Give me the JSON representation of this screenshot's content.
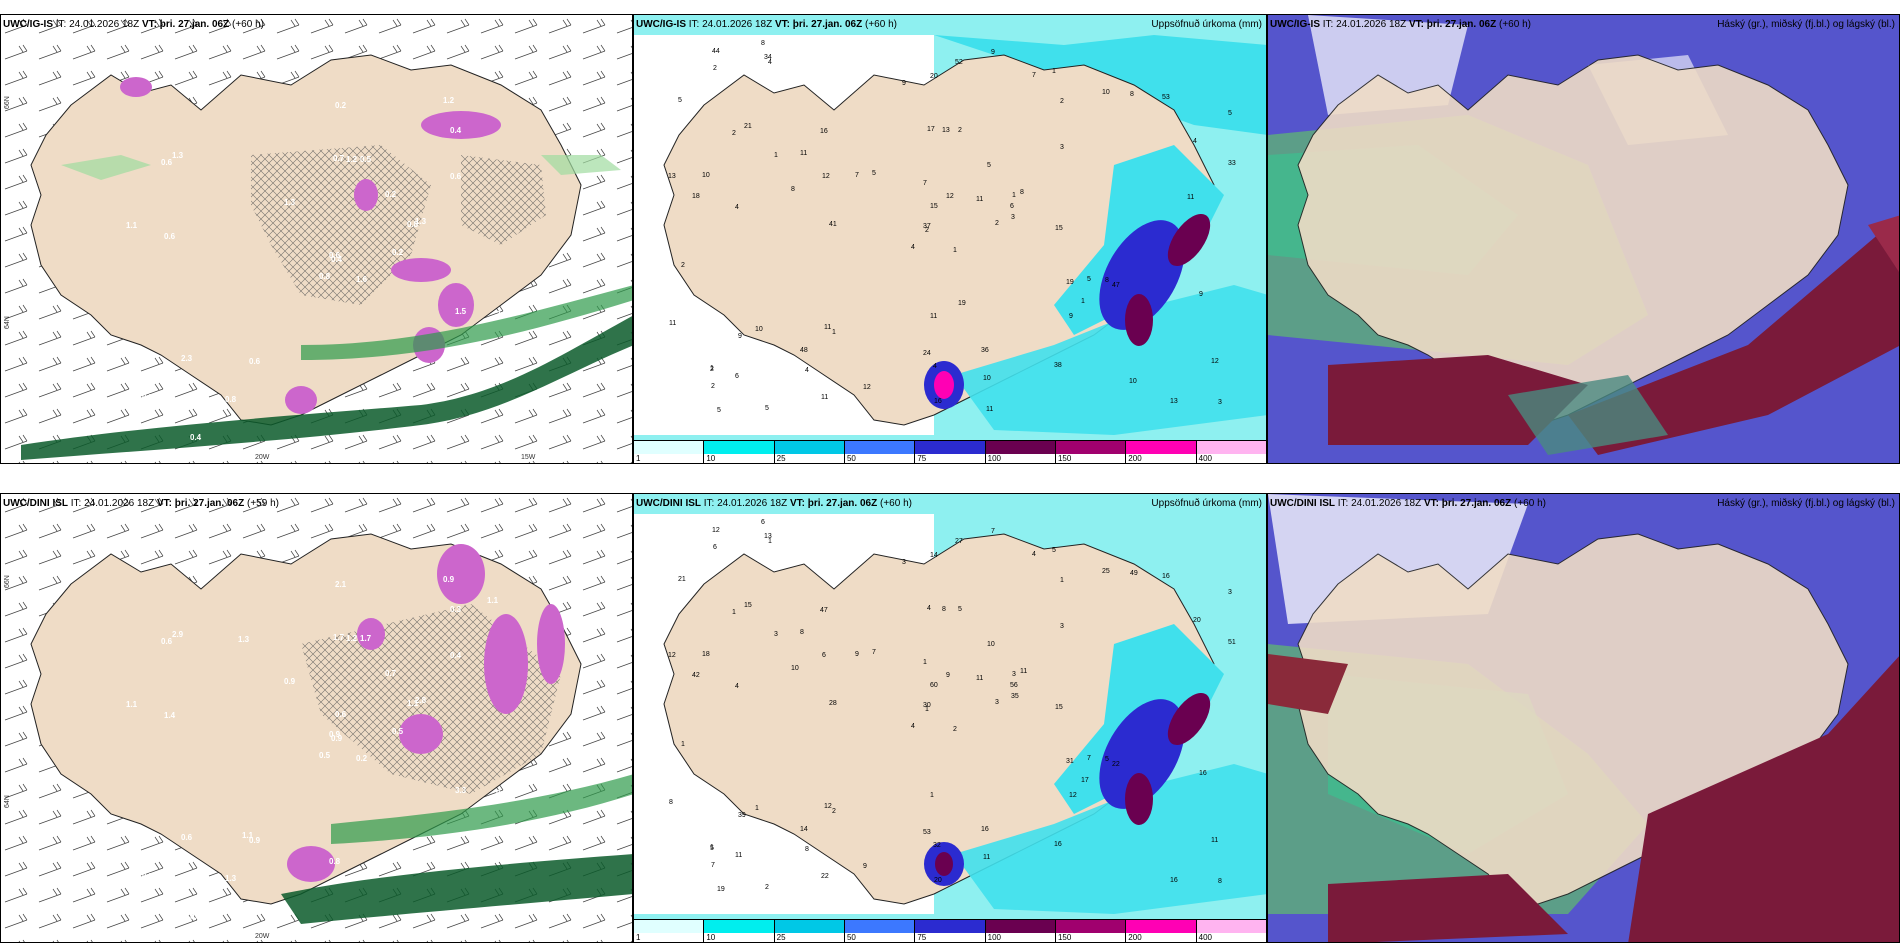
{
  "panels": {
    "p1": {
      "title_model": "UWC/IG-IS",
      "title_it": " IT: 24.01.2026 18Z ",
      "title_vt_label": "VT: þri. 27.jan. 06Z",
      "title_lead": " (+60 h)",
      "right": ""
    },
    "p2": {
      "title_model": "UWC/IG-IS",
      "title_it": " IT: 24.01.2026 18Z ",
      "title_vt_label": "VT: þri. 27.jan. 06Z",
      "title_lead": " (+60 h)",
      "right": "Uppsöfnuð úrkoma (mm)"
    },
    "p3": {
      "title_model": "UWC/IG-IS",
      "title_it": " IT: 24.01.2026 18Z ",
      "title_vt_label": "VT: þri. 27.jan. 06Z",
      "title_lead": " (+60 h)",
      "right": "Háský (gr.), miðský (fj.bl.) og lágský (bl.)"
    },
    "p4": {
      "title_model": "UWC/DINI ISL",
      "title_it": " IT: 24.01.2026 18Z ",
      "title_vt_label": "VT: þri. 27.jan. 06Z",
      "title_lead": " (+59 h)",
      "right": ""
    },
    "p5": {
      "title_model": "UWC/DINI ISL",
      "title_it": " IT: 24.01.2026 18Z ",
      "title_vt_label": "VT: þri. 27.jan. 06Z",
      "title_lead": " (+60 h)",
      "right": "Uppsöfnuð úrkoma (mm)"
    },
    "p6": {
      "title_model": "UWC/DINI ISL",
      "title_it": " IT: 24.01.2026 18Z ",
      "title_vt_label": "VT: þri. 27.jan. 06Z",
      "title_lead": " (+60 h)",
      "right": "Háský (gr.), miðský (fj.bl.) og lágský (bl.)"
    }
  },
  "axes": {
    "lat66": "66N",
    "lat64": "64N",
    "lat63": "63N",
    "lon20": "20W",
    "lon15": "15W"
  },
  "colorbar": {
    "ticks": [
      "1",
      "10",
      "25",
      "50",
      "75",
      "100",
      "150",
      "200",
      "400"
    ],
    "colors": [
      "#e0ffff",
      "#00eeee",
      "#00c8e6",
      "#3c78ff",
      "#2b2bd0",
      "#6a0050",
      "#a0006e",
      "#ff00b4",
      "#ffb4f0"
    ]
  },
  "precip_labels_top": [
    "1",
    "2",
    "2",
    "1",
    "1",
    "1",
    "1",
    "2",
    "2",
    "2",
    "4",
    "3",
    "4",
    "5",
    "4",
    "3",
    "5",
    "17",
    "5",
    "10",
    "5",
    "2",
    "4",
    "13",
    "8",
    "47",
    "21",
    "20",
    "18",
    "19",
    "33",
    "37",
    "24",
    "15",
    "16",
    "10",
    "11",
    "13",
    "12",
    "8",
    "9",
    "7",
    "8",
    "9",
    "11",
    "13",
    "6",
    "5",
    "4",
    "3",
    "9",
    "4",
    "5",
    "1",
    "38",
    "48",
    "34",
    "44",
    "36",
    "53",
    "52",
    "41",
    "10",
    "11",
    "8",
    "8",
    "7",
    "9",
    "12",
    "11",
    "11",
    "12",
    "5",
    "12",
    "2",
    "2",
    "1",
    "2",
    "7",
    "10",
    "11",
    "6",
    "15",
    "9",
    "16",
    "11",
    "19",
    "10",
    "11"
  ],
  "precip_labels_bottom": [
    "2",
    "1",
    "1",
    "1",
    "3",
    "2",
    "5",
    "5",
    "1",
    "3",
    "1",
    "8",
    "4",
    "3",
    "4",
    "3",
    "2",
    "4",
    "10",
    "1",
    "7",
    "7",
    "8",
    "8",
    "11",
    "22",
    "15",
    "14",
    "42",
    "31",
    "51",
    "30",
    "53",
    "60",
    "47",
    "25",
    "12",
    "16",
    "11",
    "5",
    "7",
    "9",
    "10",
    "12",
    "22",
    "12",
    "56",
    "19",
    "32",
    "35",
    "39",
    "20",
    "21",
    "17",
    "16",
    "14",
    "13",
    "12",
    "16",
    "16",
    "27",
    "28",
    "18",
    "8",
    "49",
    "6",
    "4",
    "3",
    "9",
    "8",
    "1",
    "9",
    "7",
    "6",
    "5",
    "6",
    "3",
    "1",
    "1",
    "11",
    "11",
    "11",
    "15",
    "16",
    "20"
  ],
  "snow_labels_top": [
    "1.6",
    "0.6",
    "0.4",
    "0.5",
    "0.8",
    "0.6",
    "1.2",
    "0.5",
    "0.4",
    "0.2",
    "2.2",
    "3.1",
    "0.6",
    "0.9",
    "0.8",
    "0.6",
    "0.4",
    "0.7",
    "0.2",
    "2.3",
    "1.3",
    "3.0",
    "0.8",
    "1.2",
    "1.3",
    "2.1",
    "1.3",
    "0.2",
    "1.1",
    "1.5",
    "2.1",
    "0.6"
  ],
  "snow_labels_bottom": [
    "0.2",
    "0.6",
    "0.9",
    "0.5",
    "1.1",
    "0.9",
    "0.9",
    "1.7",
    "0.3",
    "0.5",
    "0.7",
    "1.1",
    "1.4",
    "1.1",
    "0.5",
    "0.4",
    "0.4",
    "1.7",
    "0.7",
    "0.6",
    "0.9",
    "2.4",
    "1.3",
    "1.2",
    "2.8",
    "0.8",
    "2.9",
    "2.1",
    "1.1",
    "3.3",
    "3.2",
    "0.9",
    "0.8",
    "0.6",
    "1.3",
    "1.1",
    "1.1"
  ]
}
